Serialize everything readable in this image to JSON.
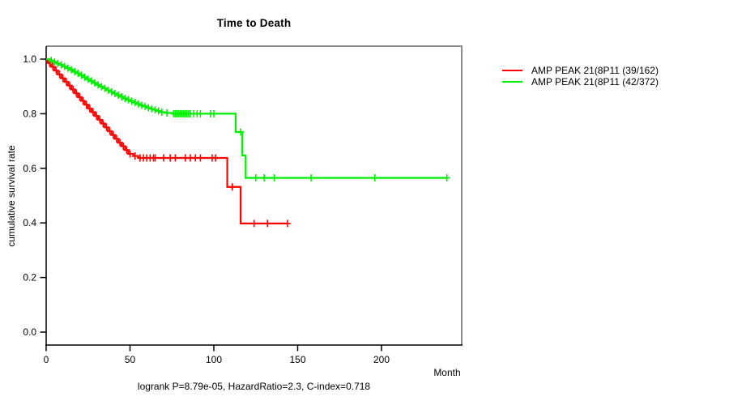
{
  "title": "Time to Death",
  "footer": "logrank P=8.79e-05, HazardRatio=2.3, C-index=0.718",
  "axes": {
    "x_label": "Month",
    "y_label": "cumulative survival rate",
    "x_ticks": [
      {
        "label": "0",
        "value": 0
      },
      {
        "label": "50",
        "value": 50
      },
      {
        "label": "100",
        "value": 100
      },
      {
        "label": "150",
        "value": 150
      },
      {
        "label": "200",
        "value": 200
      }
    ],
    "y_ticks": [
      {
        "label": "0.0",
        "value": 0.0
      },
      {
        "label": "0.2",
        "value": 0.2
      },
      {
        "label": "0.4",
        "value": 0.4
      },
      {
        "label": "0.6",
        "value": 0.6
      },
      {
        "label": "0.8",
        "value": 0.8
      },
      {
        "label": "1.0",
        "value": 1.0
      }
    ]
  },
  "legend": {
    "items": [
      {
        "label": "AMP PEAK 21(8P11 (39/162)",
        "color": "#ff0000"
      },
      {
        "label": "AMP PEAK 21(8P11 (42/372)",
        "color": "#00ee00"
      }
    ]
  },
  "colors": {
    "red_series": "#ff0000",
    "green_series": "#00ee00",
    "box": "#8a8a8a",
    "axis": "#000000",
    "text": "#000000"
  },
  "chart_data": {
    "type": "line",
    "subtype": "kaplan-meier-step",
    "title": "Time to Death",
    "xlabel": "Month",
    "ylabel": "cumulative survival rate",
    "xlim": [
      0,
      248
    ],
    "ylim": [
      0,
      1
    ],
    "grid": false,
    "legend_position": "right-outside",
    "series": [
      {
        "name": "AMP PEAK 21(8P11 (39/162)",
        "events": "39/162",
        "color": "#ff0000",
        "end_month": 144,
        "steps": [
          [
            0,
            1.0
          ],
          [
            1,
            0.986
          ],
          [
            3,
            0.972
          ],
          [
            5,
            0.958
          ],
          [
            7,
            0.944
          ],
          [
            9,
            0.93
          ],
          [
            11,
            0.917
          ],
          [
            13,
            0.903
          ],
          [
            15,
            0.889
          ],
          [
            17,
            0.875
          ],
          [
            19,
            0.861
          ],
          [
            21,
            0.847
          ],
          [
            23,
            0.833
          ],
          [
            25,
            0.819
          ],
          [
            27,
            0.806
          ],
          [
            29,
            0.792
          ],
          [
            31,
            0.778
          ],
          [
            33,
            0.764
          ],
          [
            35,
            0.75
          ],
          [
            37,
            0.736
          ],
          [
            39,
            0.722
          ],
          [
            41,
            0.708
          ],
          [
            43,
            0.694
          ],
          [
            45,
            0.681
          ],
          [
            47,
            0.667
          ],
          [
            49,
            0.653
          ],
          [
            52,
            0.645
          ],
          [
            55,
            0.638
          ],
          [
            108,
            0.532
          ],
          [
            116,
            0.398
          ]
        ],
        "censors": [
          [
            2,
            0.986
          ],
          [
            4,
            0.972
          ],
          [
            6,
            0.958
          ],
          [
            8,
            0.944
          ],
          [
            10,
            0.93
          ],
          [
            12,
            0.917
          ],
          [
            14,
            0.903
          ],
          [
            16,
            0.889
          ],
          [
            18,
            0.875
          ],
          [
            20,
            0.861
          ],
          [
            22,
            0.847
          ],
          [
            24,
            0.833
          ],
          [
            26,
            0.819
          ],
          [
            28,
            0.806
          ],
          [
            30,
            0.792
          ],
          [
            32,
            0.778
          ],
          [
            34,
            0.764
          ],
          [
            36,
            0.75
          ],
          [
            38,
            0.736
          ],
          [
            40,
            0.722
          ],
          [
            42,
            0.708
          ],
          [
            44,
            0.694
          ],
          [
            46,
            0.681
          ],
          [
            48,
            0.667
          ],
          [
            50,
            0.653
          ],
          [
            53,
            0.645
          ],
          [
            56,
            0.638
          ],
          [
            58,
            0.638
          ],
          [
            60,
            0.638
          ],
          [
            62,
            0.638
          ],
          [
            64,
            0.638
          ],
          [
            65,
            0.638
          ],
          [
            70,
            0.638
          ],
          [
            74,
            0.638
          ],
          [
            77,
            0.638
          ],
          [
            83,
            0.638
          ],
          [
            86,
            0.638
          ],
          [
            89,
            0.638
          ],
          [
            92,
            0.638
          ],
          [
            99,
            0.638
          ],
          [
            101,
            0.638
          ],
          [
            111,
            0.532
          ],
          [
            124,
            0.398
          ],
          [
            132,
            0.398
          ],
          [
            144,
            0.398
          ]
        ]
      },
      {
        "name": "AMP PEAK 21(8P11 (42/372)",
        "events": "42/372",
        "color": "#00ee00",
        "end_month": 239,
        "steps": [
          [
            0,
            1.0
          ],
          [
            2,
            0.995
          ],
          [
            4,
            0.99
          ],
          [
            6,
            0.984
          ],
          [
            8,
            0.979
          ],
          [
            10,
            0.973
          ],
          [
            12,
            0.967
          ],
          [
            14,
            0.961
          ],
          [
            16,
            0.954
          ],
          [
            18,
            0.948
          ],
          [
            20,
            0.941
          ],
          [
            22,
            0.934
          ],
          [
            24,
            0.927
          ],
          [
            26,
            0.92
          ],
          [
            28,
            0.913
          ],
          [
            30,
            0.906
          ],
          [
            32,
            0.899
          ],
          [
            34,
            0.893
          ],
          [
            36,
            0.886
          ],
          [
            38,
            0.88
          ],
          [
            40,
            0.874
          ],
          [
            42,
            0.868
          ],
          [
            44,
            0.862
          ],
          [
            46,
            0.856
          ],
          [
            48,
            0.851
          ],
          [
            50,
            0.846
          ],
          [
            52,
            0.841
          ],
          [
            54,
            0.836
          ],
          [
            56,
            0.831
          ],
          [
            58,
            0.827
          ],
          [
            60,
            0.822
          ],
          [
            62,
            0.818
          ],
          [
            64,
            0.814
          ],
          [
            66,
            0.81
          ],
          [
            68,
            0.806
          ],
          [
            71,
            0.803
          ],
          [
            75,
            0.8
          ],
          [
            113,
            0.733
          ],
          [
            117,
            0.647
          ],
          [
            119,
            0.565
          ]
        ],
        "censors": [
          [
            3,
            0.995
          ],
          [
            5,
            0.99
          ],
          [
            7,
            0.984
          ],
          [
            9,
            0.979
          ],
          [
            11,
            0.973
          ],
          [
            13,
            0.967
          ],
          [
            15,
            0.961
          ],
          [
            17,
            0.954
          ],
          [
            19,
            0.948
          ],
          [
            21,
            0.941
          ],
          [
            23,
            0.934
          ],
          [
            25,
            0.927
          ],
          [
            27,
            0.92
          ],
          [
            29,
            0.913
          ],
          [
            31,
            0.906
          ],
          [
            33,
            0.899
          ],
          [
            35,
            0.893
          ],
          [
            37,
            0.886
          ],
          [
            39,
            0.88
          ],
          [
            41,
            0.874
          ],
          [
            43,
            0.868
          ],
          [
            45,
            0.862
          ],
          [
            47,
            0.856
          ],
          [
            49,
            0.851
          ],
          [
            51,
            0.846
          ],
          [
            53,
            0.841
          ],
          [
            55,
            0.836
          ],
          [
            57,
            0.831
          ],
          [
            59,
            0.827
          ],
          [
            61,
            0.822
          ],
          [
            63,
            0.818
          ],
          [
            65,
            0.814
          ],
          [
            67,
            0.81
          ],
          [
            69,
            0.806
          ],
          [
            72,
            0.803
          ],
          [
            76,
            0.8
          ],
          [
            77,
            0.8
          ],
          [
            78,
            0.8
          ],
          [
            79,
            0.8
          ],
          [
            80,
            0.8
          ],
          [
            81,
            0.8
          ],
          [
            82,
            0.8
          ],
          [
            83,
            0.8
          ],
          [
            84,
            0.8
          ],
          [
            85,
            0.8
          ],
          [
            86,
            0.8
          ],
          [
            88,
            0.8
          ],
          [
            90,
            0.8
          ],
          [
            92,
            0.8
          ],
          [
            98,
            0.8
          ],
          [
            100,
            0.8
          ],
          [
            116,
            0.733
          ],
          [
            125,
            0.565
          ],
          [
            130,
            0.565
          ],
          [
            136,
            0.565
          ],
          [
            158,
            0.565
          ],
          [
            196,
            0.565
          ],
          [
            239,
            0.565
          ]
        ]
      }
    ]
  }
}
